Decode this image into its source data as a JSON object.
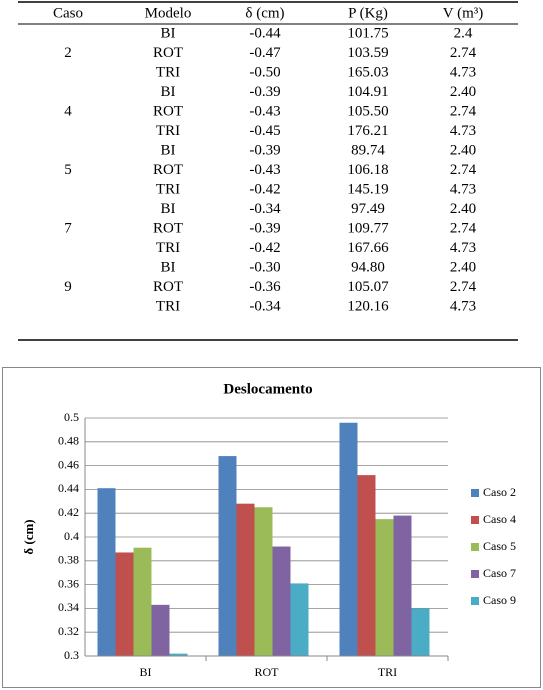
{
  "table": {
    "columns": [
      "Caso",
      "Modelo",
      "δ (cm)",
      "P (Kg)",
      "V (m³)"
    ],
    "groups": [
      {
        "caso": "2",
        "rows": [
          [
            "BI",
            "-0.44",
            "101.75",
            "2.4"
          ],
          [
            "ROT",
            "-0.47",
            "103.59",
            "2.74"
          ],
          [
            "TRI",
            "-0.50",
            "165.03",
            "4.73"
          ]
        ]
      },
      {
        "caso": "4",
        "rows": [
          [
            "BI",
            "-0.39",
            "104.91",
            "2.40"
          ],
          [
            "ROT",
            "-0.43",
            "105.50",
            "2.74"
          ],
          [
            "TRI",
            "-0.45",
            "176.21",
            "4.73"
          ]
        ]
      },
      {
        "caso": "5",
        "rows": [
          [
            "BI",
            "-0.39",
            "89.74",
            "2.40"
          ],
          [
            "ROT",
            "-0.43",
            "106.18",
            "2.74"
          ],
          [
            "TRI",
            "-0.42",
            "145.19",
            "4.73"
          ]
        ]
      },
      {
        "caso": "7",
        "rows": [
          [
            "BI",
            "-0.34",
            "97.49",
            "2.40"
          ],
          [
            "ROT",
            "-0.39",
            "109.77",
            "2.74"
          ],
          [
            "TRI",
            "-0.42",
            "167.66",
            "4.73"
          ]
        ]
      },
      {
        "caso": "9",
        "rows": [
          [
            "BI",
            "-0.30",
            "94.80",
            "2.40"
          ],
          [
            "ROT",
            "-0.36",
            "105.07",
            "2.74"
          ],
          [
            "TRI",
            "-0.34",
            "120.16",
            "4.73"
          ]
        ]
      }
    ]
  },
  "chart_data": {
    "type": "bar",
    "title": "Deslocamento",
    "y_label": "δ (cm)",
    "categories": [
      "BI",
      "ROT",
      "TRI"
    ],
    "series": [
      {
        "name": "Caso 2",
        "color": "#4f81bd",
        "values": [
          0.441,
          0.468,
          0.496
        ]
      },
      {
        "name": "Caso 4",
        "color": "#c0504d",
        "values": [
          0.387,
          0.428,
          0.452
        ]
      },
      {
        "name": "Caso 5",
        "color": "#9bbb59",
        "values": [
          0.391,
          0.425,
          0.415
        ]
      },
      {
        "name": "Caso 7",
        "color": "#8064a2",
        "values": [
          0.343,
          0.392,
          0.418
        ]
      },
      {
        "name": "Caso 9",
        "color": "#4bacc6",
        "values": [
          0.302,
          0.361,
          0.34
        ]
      }
    ],
    "ylim": [
      0.3,
      0.5
    ],
    "yticks": [
      0.3,
      0.32,
      0.34,
      0.36,
      0.38,
      0.4,
      0.42,
      0.44,
      0.46,
      0.48,
      0.5
    ],
    "grid": true,
    "legend": "right"
  }
}
